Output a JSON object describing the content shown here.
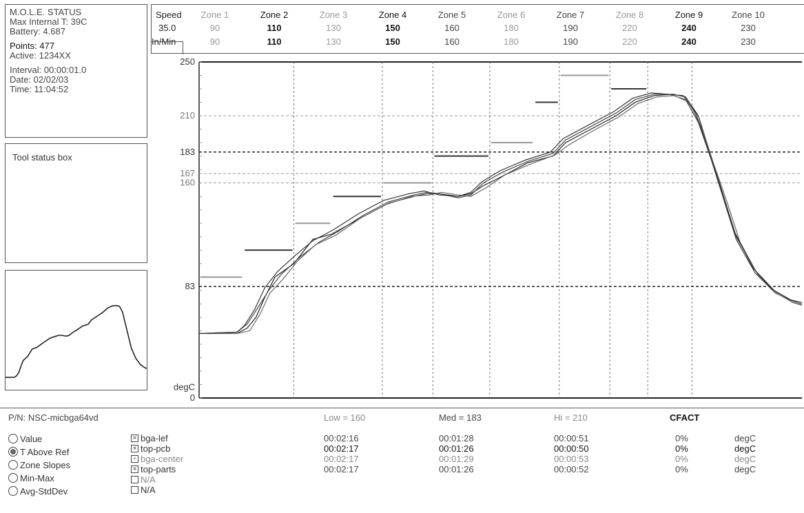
{
  "status": {
    "title": "M.O.L.E. STATUS",
    "max_internal": "Max Internal T: 39C",
    "battery": "Battery: 4.687",
    "points": "Points: 477",
    "active": "Active: 1234XX",
    "interval": "Interval: 00:00:01.0",
    "date": "Date: 02/02/03",
    "time": "Time: 11:04:52"
  },
  "tool_box": {
    "label": "Tool status box"
  },
  "zone_table": {
    "speed_label": "Speed",
    "speed_value": "35.0",
    "unit_label": "In/Min",
    "zones": [
      {
        "name": "Zone 1",
        "top": "90",
        "bottom": "90",
        "tone": "muted"
      },
      {
        "name": "Zone 2",
        "top": "110",
        "bottom": "110",
        "tone": "dark"
      },
      {
        "name": "Zone 3",
        "top": "130",
        "bottom": "130",
        "tone": "muted"
      },
      {
        "name": "Zone 4",
        "top": "150",
        "bottom": "150",
        "tone": "dark"
      },
      {
        "name": "Zone 5",
        "top": "160",
        "bottom": "160",
        "tone": "normal"
      },
      {
        "name": "Zone 6",
        "top": "180",
        "bottom": "180",
        "tone": "muted"
      },
      {
        "name": "Zone 7",
        "top": "190",
        "bottom": "190",
        "tone": "normal"
      },
      {
        "name": "Zone 8",
        "top": "220",
        "bottom": "220",
        "tone": "muted"
      },
      {
        "name": "Zone 9",
        "top": "240",
        "bottom": "240",
        "tone": "dark"
      },
      {
        "name": "Zone 10",
        "top": "230",
        "bottom": "230",
        "tone": "normal"
      }
    ]
  },
  "chart_data": {
    "type": "line",
    "ylabel": "degC",
    "ylim": [
      0,
      250
    ],
    "y_ticks": [
      "250",
      "210",
      "183",
      "167",
      "160",
      "83",
      "degC",
      "0"
    ],
    "ref_lines": [
      210,
      183,
      167,
      160,
      83
    ],
    "zone_setpoints": [
      90,
      110,
      130,
      150,
      160,
      180,
      190,
      220,
      240,
      230
    ],
    "x_range": [
      0,
      477
    ],
    "series": [
      {
        "values": [
          [
            0,
            48
          ],
          [
            30,
            48
          ],
          [
            38,
            52
          ],
          [
            45,
            60
          ],
          [
            52,
            75
          ],
          [
            60,
            90
          ],
          [
            75,
            100
          ],
          [
            90,
            118
          ],
          [
            105,
            122
          ],
          [
            130,
            135
          ],
          [
            150,
            145
          ],
          [
            170,
            150
          ],
          [
            180,
            152
          ],
          [
            190,
            152
          ],
          [
            205,
            150
          ],
          [
            215,
            152
          ],
          [
            225,
            158
          ],
          [
            240,
            165
          ],
          [
            260,
            175
          ],
          [
            280,
            180
          ],
          [
            290,
            190
          ],
          [
            310,
            200
          ],
          [
            330,
            210
          ],
          [
            345,
            220
          ],
          [
            360,
            225
          ],
          [
            375,
            226
          ],
          [
            385,
            224
          ],
          [
            395,
            210
          ],
          [
            405,
            180
          ],
          [
            415,
            150
          ],
          [
            425,
            120
          ],
          [
            440,
            95
          ],
          [
            455,
            80
          ],
          [
            470,
            72
          ],
          [
            477,
            70
          ]
        ]
      },
      {
        "values": [
          [
            0,
            48
          ],
          [
            30,
            49
          ],
          [
            38,
            55
          ],
          [
            45,
            65
          ],
          [
            55,
            80
          ],
          [
            65,
            92
          ],
          [
            80,
            105
          ],
          [
            95,
            116
          ],
          [
            110,
            124
          ],
          [
            130,
            136
          ],
          [
            150,
            146
          ],
          [
            170,
            151
          ],
          [
            180,
            153
          ],
          [
            190,
            152
          ],
          [
            205,
            149
          ],
          [
            215,
            151
          ],
          [
            225,
            160
          ],
          [
            240,
            168
          ],
          [
            260,
            176
          ],
          [
            280,
            182
          ],
          [
            290,
            192
          ],
          [
            310,
            202
          ],
          [
            330,
            212
          ],
          [
            345,
            222
          ],
          [
            360,
            226
          ],
          [
            372,
            226
          ],
          [
            385,
            222
          ],
          [
            395,
            205
          ],
          [
            405,
            178
          ],
          [
            415,
            148
          ],
          [
            425,
            118
          ],
          [
            440,
            93
          ],
          [
            455,
            79
          ],
          [
            470,
            71
          ],
          [
            477,
            69
          ]
        ]
      },
      {
        "values": [
          [
            0,
            48
          ],
          [
            30,
            48
          ],
          [
            40,
            50
          ],
          [
            48,
            62
          ],
          [
            56,
            78
          ],
          [
            66,
            88
          ],
          [
            78,
            102
          ],
          [
            92,
            114
          ],
          [
            108,
            121
          ],
          [
            128,
            134
          ],
          [
            148,
            144
          ],
          [
            168,
            150
          ],
          [
            182,
            151
          ],
          [
            192,
            153
          ],
          [
            205,
            151
          ],
          [
            215,
            150
          ],
          [
            228,
            157
          ],
          [
            242,
            166
          ],
          [
            262,
            174
          ],
          [
            282,
            181
          ],
          [
            292,
            188
          ],
          [
            312,
            199
          ],
          [
            332,
            209
          ],
          [
            347,
            219
          ],
          [
            362,
            224
          ],
          [
            376,
            225
          ],
          [
            388,
            220
          ],
          [
            398,
            200
          ],
          [
            408,
            172
          ],
          [
            418,
            145
          ],
          [
            428,
            116
          ],
          [
            442,
            92
          ],
          [
            456,
            78
          ],
          [
            470,
            72
          ],
          [
            477,
            70
          ]
        ]
      },
      {
        "values": [
          [
            0,
            48
          ],
          [
            30,
            49
          ],
          [
            36,
            54
          ],
          [
            44,
            66
          ],
          [
            52,
            82
          ],
          [
            62,
            94
          ],
          [
            76,
            106
          ],
          [
            90,
            117
          ],
          [
            106,
            125
          ],
          [
            126,
            137
          ],
          [
            146,
            147
          ],
          [
            166,
            152
          ],
          [
            178,
            154
          ],
          [
            190,
            151
          ],
          [
            205,
            150
          ],
          [
            215,
            153
          ],
          [
            224,
            161
          ],
          [
            238,
            169
          ],
          [
            258,
            177
          ],
          [
            278,
            183
          ],
          [
            288,
            193
          ],
          [
            308,
            203
          ],
          [
            328,
            213
          ],
          [
            343,
            223
          ],
          [
            358,
            227
          ],
          [
            370,
            226
          ],
          [
            383,
            225
          ],
          [
            393,
            212
          ],
          [
            403,
            185
          ],
          [
            413,
            155
          ],
          [
            423,
            125
          ],
          [
            438,
            97
          ],
          [
            453,
            81
          ],
          [
            468,
            73
          ],
          [
            477,
            71
          ]
        ]
      }
    ]
  },
  "bottom": {
    "pn": "P/N: NSC-micbga64vd",
    "radios": [
      "Value",
      "T Above Ref",
      "Zone Slopes",
      "Min-Max",
      "Avg-StdDev"
    ],
    "selected_radio": "T Above Ref",
    "probes": [
      {
        "label": "bga-lef",
        "checked": true,
        "tone": "normal"
      },
      {
        "label": "top-pcb",
        "checked": true,
        "tone": "normal"
      },
      {
        "label": "bga-center",
        "checked": true,
        "tone": "muted"
      },
      {
        "label": "top-parts",
        "checked": true,
        "tone": "normal"
      },
      {
        "label": "N/A",
        "checked": false,
        "tone": "muted"
      },
      {
        "label": "N/A",
        "checked": false,
        "tone": "normal"
      }
    ],
    "headers": {
      "low": "Low = 160",
      "med": "Med = 183",
      "hi": "Hi = 210",
      "cfact": "CFACT"
    },
    "rows": [
      {
        "low": "00:02:16",
        "med": "00:01:28",
        "hi": "00:00:51",
        "cfact": "0%",
        "unit": "degC",
        "tone": "normal"
      },
      {
        "low": "00:02:17",
        "med": "00:01:26",
        "hi": "00:00:50",
        "cfact": "0%",
        "unit": "degC",
        "tone": "dark"
      },
      {
        "low": "00:02:17",
        "med": "00:01:29",
        "hi": "00:00:53",
        "cfact": "0%",
        "unit": "degC",
        "tone": "muted"
      },
      {
        "low": "00:02:17",
        "med": "00:01:26",
        "hi": "00:00:52",
        "cfact": "0%",
        "unit": "degC",
        "tone": "normal"
      }
    ]
  }
}
